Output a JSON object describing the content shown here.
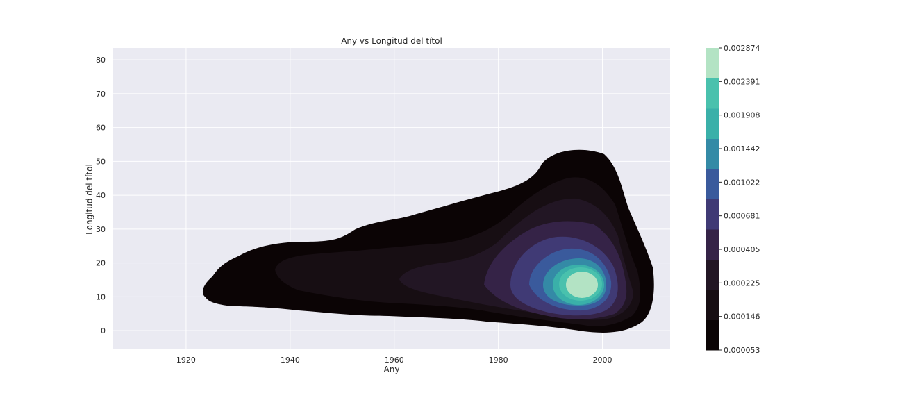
{
  "chart_data": {
    "type": "kde-contour",
    "title": "Any vs Longitud del títol",
    "xlabel": "Any",
    "ylabel": "Longitud del títol",
    "xlim": [
      1906,
      2013
    ],
    "ylim": [
      -5.5,
      83.5
    ],
    "x_ticks": [
      1920,
      1940,
      1960,
      1980,
      2000
    ],
    "y_ticks": [
      0,
      10,
      20,
      30,
      40,
      50,
      60,
      70,
      80
    ],
    "grid": true,
    "background": "#eaeaf2",
    "colormap": "mako",
    "density_peak": {
      "x": 1996,
      "y": 13.5
    },
    "levels": [
      5.3e-05,
      0.000146,
      0.000225,
      0.000405,
      0.000681,
      0.001022,
      0.001442,
      0.001908,
      0.002391,
      0.002874
    ],
    "colorbar_labels": [
      "0.000053",
      "0.000146",
      "0.000225",
      "0.000405",
      "0.000681",
      "0.001022",
      "0.001442",
      "0.001908",
      "0.002391",
      "0.002874"
    ],
    "band_colors": [
      "#0b0405",
      "#170e13",
      "#221624",
      "#352347",
      "#403a75",
      "#3a5a9c",
      "#348aa6",
      "#3ab0a9",
      "#49c1ad",
      "#b3e3c4"
    ]
  }
}
